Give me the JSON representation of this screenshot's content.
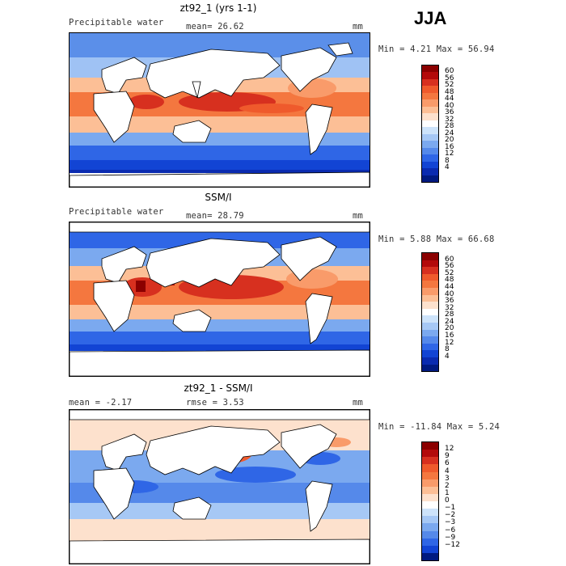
{
  "season": "JJA",
  "panels": [
    {
      "title": "zt92_1 (yrs 1-1)",
      "left_label": "Precipitable water",
      "center_label": "mean=  26.62",
      "units": "mm",
      "min_max": "Min =   4.21 Max =  56.94",
      "colorbar_labels": [
        "60",
        "56",
        "52",
        "48",
        "44",
        "40",
        "36",
        "32",
        "28",
        "24",
        "20",
        "16",
        "12",
        "8",
        "4"
      ],
      "colorbar_colors": [
        "#8b0000",
        "#b30a0a",
        "#d7301f",
        "#ef5a2c",
        "#f4773f",
        "#f99b6a",
        "#fcbf96",
        "#fde1cd",
        "#ffffff",
        "#cde3fa",
        "#a6c8f5",
        "#7ba9ef",
        "#5589ea",
        "#2f66e6",
        "#1244d4",
        "#0a2bb0",
        "#001a80"
      ]
    },
    {
      "title": "SSM/I",
      "left_label": "Precipitable water",
      "center_label": "mean=  28.79",
      "units": "mm",
      "min_max": "Min =   5.88 Max =  66.68",
      "colorbar_labels": [
        "60",
        "56",
        "52",
        "48",
        "44",
        "40",
        "36",
        "32",
        "28",
        "24",
        "20",
        "16",
        "12",
        "8",
        "4"
      ],
      "colorbar_colors": [
        "#8b0000",
        "#b30a0a",
        "#d7301f",
        "#ef5a2c",
        "#f4773f",
        "#f99b6a",
        "#fcbf96",
        "#fde1cd",
        "#ffffff",
        "#cde3fa",
        "#a6c8f5",
        "#7ba9ef",
        "#5589ea",
        "#2f66e6",
        "#1244d4",
        "#0a2bb0",
        "#001a80"
      ]
    },
    {
      "title": "zt92_1 - SSM/I",
      "left_label": "mean =  -2.17",
      "center_label": "rmse =   3.53",
      "units": "mm",
      "min_max": "Min = -11.84 Max =   5.24",
      "colorbar_labels": [
        "12",
        "9",
        "6",
        "4",
        "3",
        "2",
        "1",
        "0",
        "−1",
        "−2",
        "−3",
        "−6",
        "−9",
        "−12"
      ],
      "colorbar_colors": [
        "#8b0000",
        "#b30a0a",
        "#d7301f",
        "#ef5a2c",
        "#f4773f",
        "#f99b6a",
        "#fcbf96",
        "#fde1cd",
        "#ffffff",
        "#cde3fa",
        "#a6c8f5",
        "#7ba9ef",
        "#5589ea",
        "#2f66e6",
        "#1244d4",
        "#001a80"
      ]
    }
  ]
}
